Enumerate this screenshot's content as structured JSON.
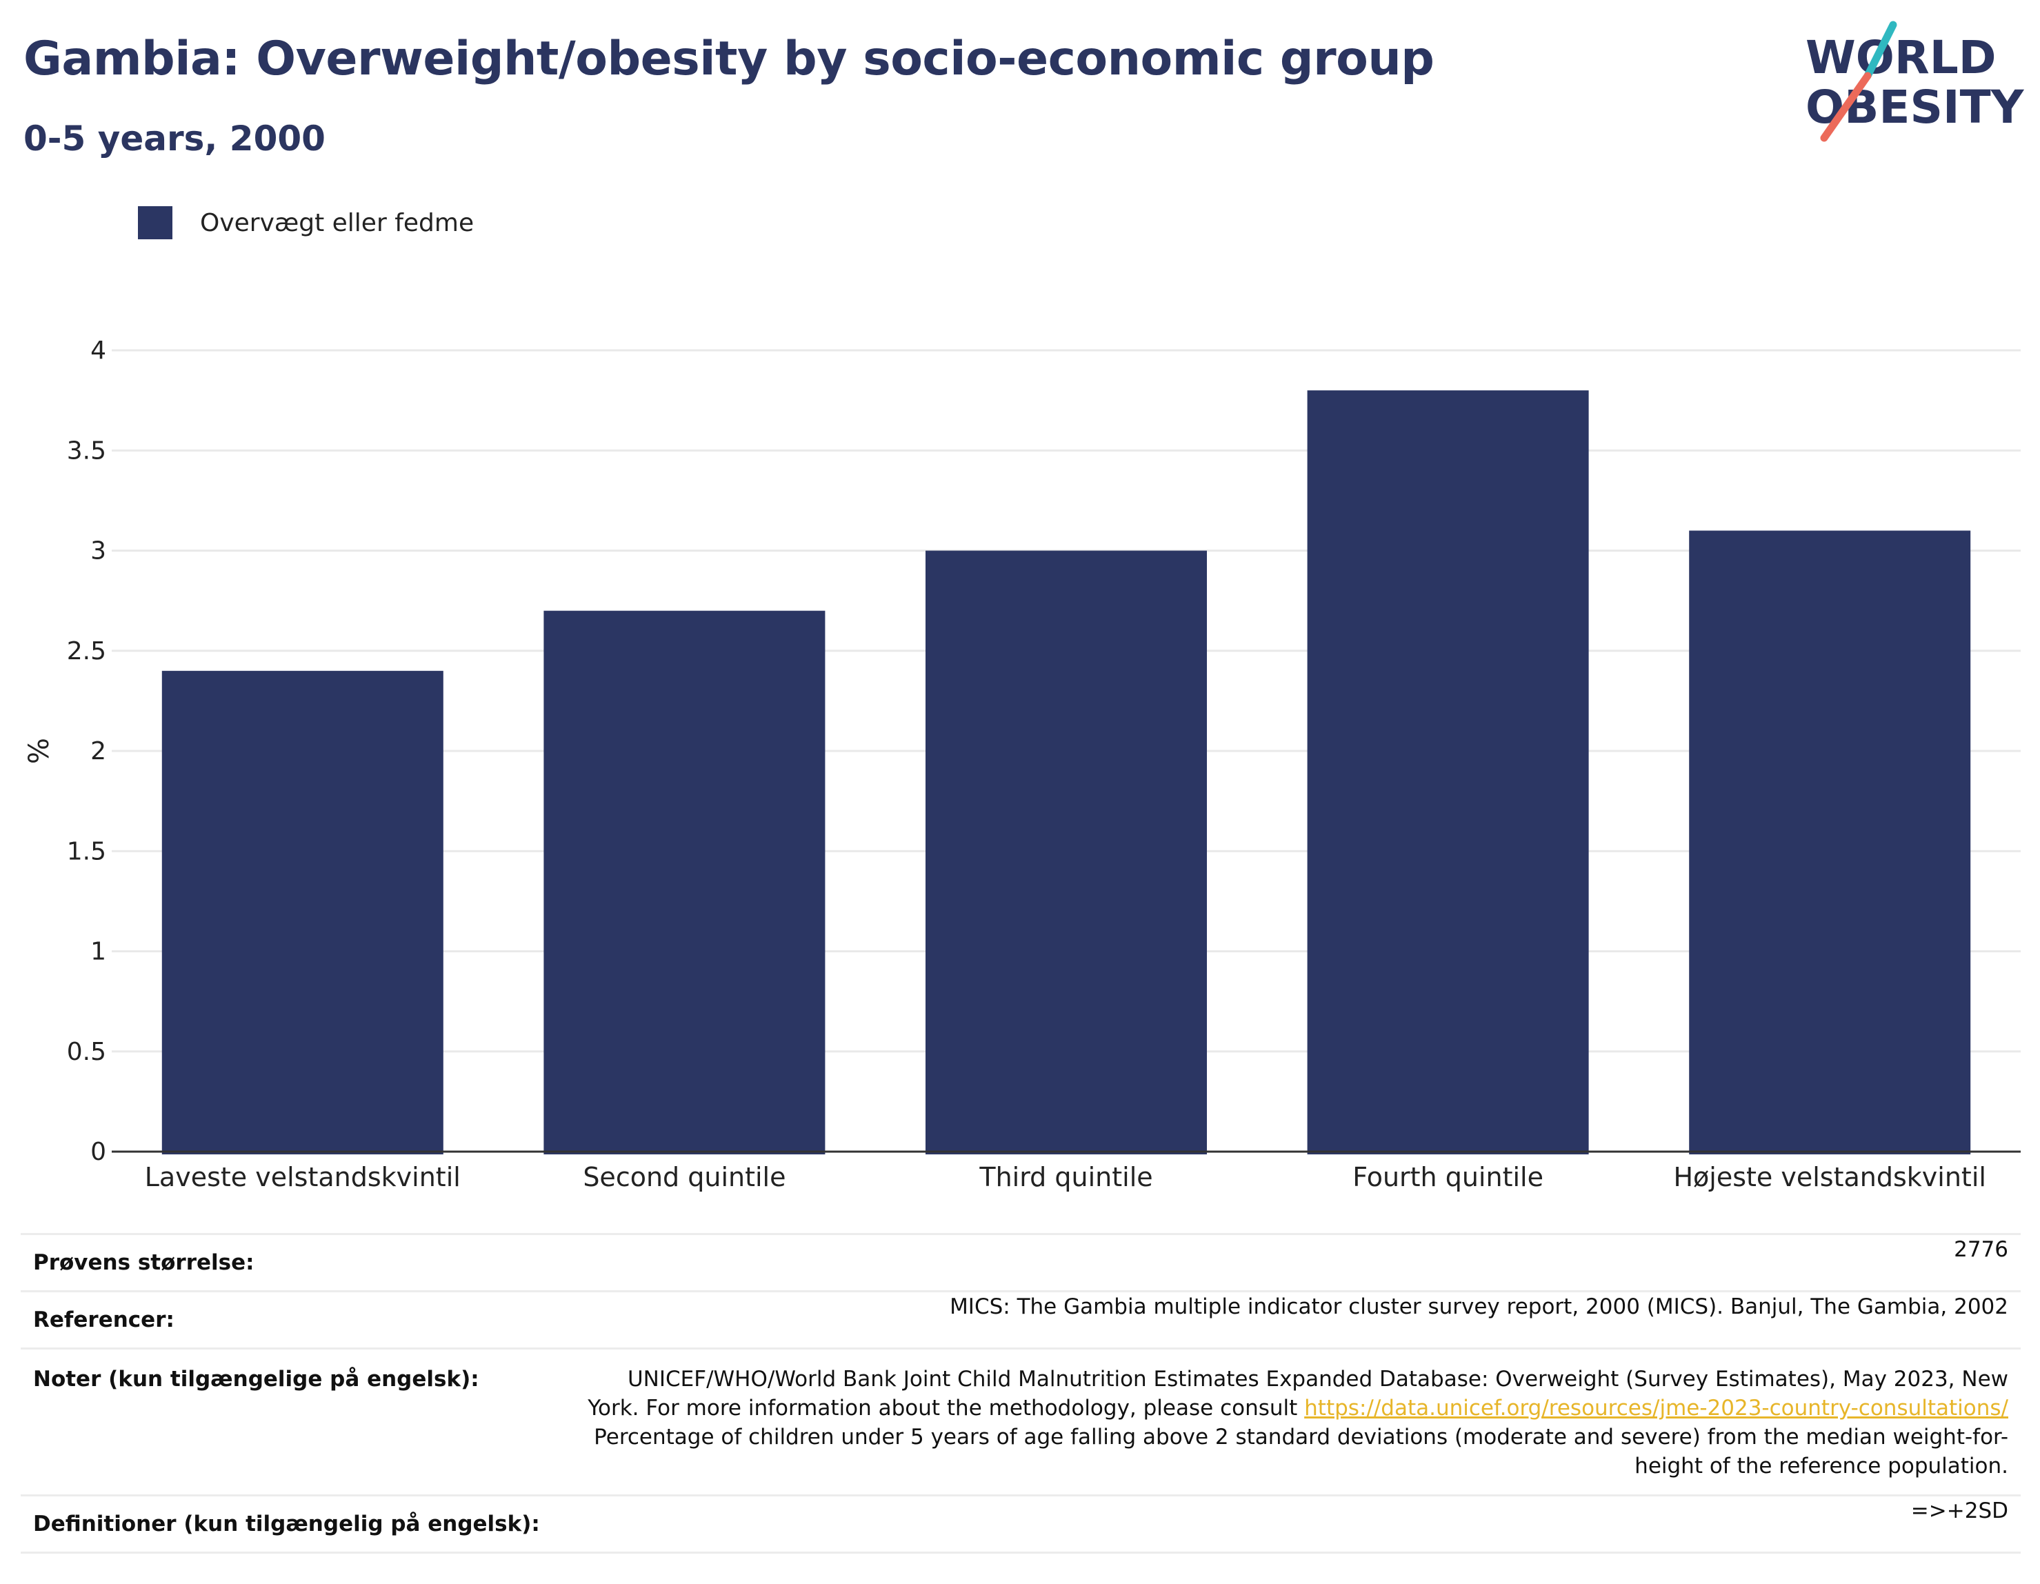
{
  "header": {
    "title": "Gambia: Overweight/obesity by socio-economic group",
    "subtitle": "0-5 years, 2000"
  },
  "logo": {
    "line1": "WORLD",
    "line2": "OBESITY",
    "colors": {
      "text": "#2b3560",
      "slash_top": "#2fb8c0",
      "slash_bottom": "#ec6a5a"
    }
  },
  "legend": {
    "label": "Overvægt eller fedme",
    "color": "#2b3663"
  },
  "chart_data": {
    "type": "bar",
    "categories": [
      "Laveste velstandskvintil",
      "Second quintile",
      "Third quintile",
      "Fourth quintile",
      "Højeste velstandskvintil"
    ],
    "series": [
      {
        "name": "Overvægt eller fedme",
        "values": [
          2.4,
          2.7,
          3.0,
          3.8,
          3.1
        ],
        "color": "#2b3663"
      }
    ],
    "ylabel": "%",
    "ylim": [
      0,
      4
    ],
    "yticks": [
      0,
      0.5,
      1,
      1.5,
      2,
      2.5,
      3,
      3.5,
      4
    ],
    "ytick_labels": [
      "0",
      "0.5",
      "1",
      "1.5",
      "2",
      "2.5",
      "3",
      "3.5",
      "4"
    ],
    "grid": true,
    "legend_position": "top-left"
  },
  "info": {
    "sample_size_label": "Prøvens størrelse:",
    "sample_size_value": "2776",
    "references_label": "Referencer:",
    "references_value": "MICS: The Gambia multiple indicator cluster survey report, 2000 (MICS). Banjul, The Gambia, 2002",
    "notes_label": "Noter (kun tilgængelige på engelsk):",
    "notes_text1": "UNICEF/WHO/World Bank Joint Child Malnutrition Estimates Expanded Database: Overweight (Survey Estimates), May 2023, New York. For more information about the methodology, please consult",
    "notes_link": "https://data.unicef.org/resources/jme-2023-country-consultations/",
    "notes_text2": "Percentage of children under 5 years of age falling above 2 standard deviations (moderate and severe) from the median weight-for-height of the reference population.",
    "definitions_label": "Definitioner (kun tilgængelig på engelsk):",
    "definitions_value": "=>+2SD"
  }
}
